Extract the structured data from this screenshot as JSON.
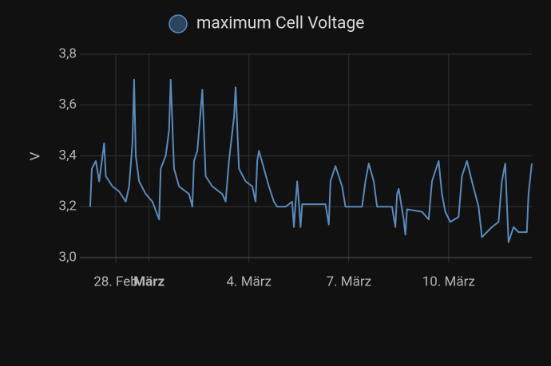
{
  "chart_data": {
    "type": "line",
    "legend_position": "top",
    "ylabel": "V",
    "series": [
      {
        "name": "maximum Cell Voltage",
        "color": "#5a8abb",
        "x": [
          -0.77,
          -0.72,
          -0.6,
          -0.5,
          -0.4,
          -0.35,
          -0.3,
          -0.1,
          0.1,
          0.3,
          0.4,
          0.5,
          0.55,
          0.6,
          0.7,
          0.9,
          1.1,
          1.3,
          1.35,
          1.5,
          1.6,
          1.65,
          1.75,
          1.9,
          2.2,
          2.3,
          2.35,
          2.45,
          2.6,
          2.7,
          2.9,
          3.2,
          3.3,
          3.4,
          3.55,
          3.6,
          3.7,
          3.9,
          4.1,
          4.2,
          4.25,
          4.3,
          4.45,
          4.6,
          4.75,
          4.85,
          5.1,
          5.3,
          5.35,
          5.45,
          5.5,
          5.55,
          5.6,
          6.3,
          6.4,
          6.45,
          6.6,
          6.8,
          6.9,
          7.4,
          7.5,
          7.6,
          7.75,
          7.85,
          8.3,
          8.4,
          8.45,
          8.5,
          8.65,
          8.7,
          8.75,
          9.2,
          9.4,
          9.5,
          9.7,
          9.8,
          9.9,
          10.05,
          10.3,
          10.4,
          10.55,
          10.7,
          10.9,
          11.0,
          11.3,
          11.5,
          11.6,
          11.7,
          11.8,
          11.95,
          12.1,
          12.35,
          12.4,
          12.5
        ],
        "values": [
          3.2,
          3.35,
          3.38,
          3.3,
          3.4,
          3.45,
          3.32,
          3.28,
          3.26,
          3.22,
          3.28,
          3.45,
          3.7,
          3.4,
          3.3,
          3.25,
          3.22,
          3.15,
          3.35,
          3.4,
          3.5,
          3.7,
          3.35,
          3.28,
          3.25,
          3.2,
          3.38,
          3.42,
          3.66,
          3.32,
          3.28,
          3.25,
          3.22,
          3.38,
          3.55,
          3.67,
          3.35,
          3.3,
          3.28,
          3.22,
          3.38,
          3.42,
          3.35,
          3.28,
          3.22,
          3.2,
          3.2,
          3.22,
          3.12,
          3.3,
          3.22,
          3.12,
          3.21,
          3.21,
          3.13,
          3.3,
          3.36,
          3.28,
          3.2,
          3.2,
          3.3,
          3.37,
          3.3,
          3.2,
          3.2,
          3.12,
          3.25,
          3.27,
          3.15,
          3.09,
          3.19,
          3.18,
          3.15,
          3.3,
          3.38,
          3.25,
          3.18,
          3.14,
          3.16,
          3.32,
          3.38,
          3.3,
          3.2,
          3.08,
          3.12,
          3.14,
          3.3,
          3.37,
          3.06,
          3.12,
          3.1,
          3.1,
          3.25,
          3.37
        ]
      }
    ],
    "xlim": [
      -1.08,
      12.5
    ],
    "xticks": [
      {
        "value": 0,
        "label": "28. Feb"
      },
      {
        "value": 1,
        "label": "März"
      },
      {
        "value": 4,
        "label": "4. März"
      },
      {
        "value": 7,
        "label": "7. März"
      },
      {
        "value": 10,
        "label": "10. März"
      }
    ],
    "ylim": [
      3.0,
      3.8
    ],
    "yticks": [
      {
        "value": 3.0,
        "label": "3,0"
      },
      {
        "value": 3.2,
        "label": "3,2"
      },
      {
        "value": 3.4,
        "label": "3,4"
      },
      {
        "value": 3.6,
        "label": "3,6"
      },
      {
        "value": 3.8,
        "label": "3,8"
      }
    ],
    "grid": true
  }
}
